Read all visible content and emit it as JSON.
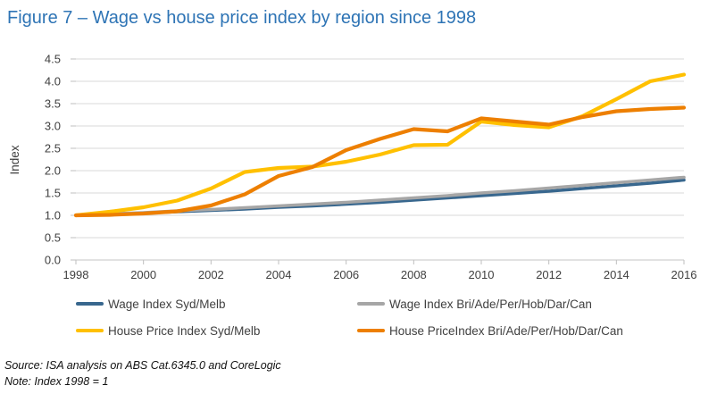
{
  "title": "Figure 7 – Wage vs house price index by region since 1998",
  "chart_data": {
    "type": "line",
    "title": "Figure 7 – Wage vs house price index by region since 1998",
    "xlabel": "",
    "ylabel": "Index",
    "ylim": [
      0,
      4.5
    ],
    "grid": "horizontal",
    "legend_position": "bottom",
    "x": [
      1998,
      1999,
      2000,
      2001,
      2002,
      2003,
      2004,
      2005,
      2006,
      2007,
      2008,
      2009,
      2010,
      2011,
      2012,
      2013,
      2014,
      2015,
      2016
    ],
    "x_ticks": [
      "1998",
      "2000",
      "2002",
      "2004",
      "2006",
      "2008",
      "2010",
      "2012",
      "2014",
      "2016"
    ],
    "y_ticks": [
      "0.0",
      "0.5",
      "1.0",
      "1.5",
      "2.0",
      "2.5",
      "3.0",
      "3.5",
      "4.0",
      "4.5"
    ],
    "series": [
      {
        "name": "Wage Index Syd/Melb",
        "color": "#38678E",
        "values": [
          1.0,
          1.03,
          1.05,
          1.08,
          1.11,
          1.14,
          1.18,
          1.21,
          1.25,
          1.29,
          1.34,
          1.39,
          1.44,
          1.49,
          1.54,
          1.6,
          1.66,
          1.72,
          1.79
        ]
      },
      {
        "name": "Wage Index Bri/Ade/Per/Hob/Dar/Can",
        "color": "#A6A6A6",
        "values": [
          1.0,
          1.03,
          1.06,
          1.1,
          1.13,
          1.17,
          1.21,
          1.25,
          1.29,
          1.34,
          1.39,
          1.44,
          1.5,
          1.55,
          1.61,
          1.67,
          1.73,
          1.79,
          1.85
        ]
      },
      {
        "name": "House Price Index Syd/Melb",
        "color": "#FFC000",
        "values": [
          1.0,
          1.08,
          1.18,
          1.33,
          1.6,
          1.97,
          2.06,
          2.09,
          2.2,
          2.36,
          2.57,
          2.58,
          3.1,
          3.02,
          2.97,
          3.22,
          3.6,
          4.0,
          4.15
        ]
      },
      {
        "name": "House PriceIndex Bri/Ade/Per/Hob/Dar/Can",
        "color": "#ED7F00",
        "values": [
          1.0,
          1.01,
          1.04,
          1.09,
          1.22,
          1.47,
          1.88,
          2.08,
          2.46,
          2.71,
          2.93,
          2.88,
          3.17,
          3.1,
          3.03,
          3.2,
          3.33,
          3.38,
          3.41
        ]
      }
    ]
  },
  "colors": {
    "title": "#2E74B5",
    "axis_text": "#404040",
    "gridline": "#D9D9D9",
    "tick": "#BFBFBF"
  },
  "footer": {
    "source": "Source: ISA analysis on ABS Cat.6345.0 and CoreLogic",
    "note": "Note: Index 1998 = 1"
  }
}
